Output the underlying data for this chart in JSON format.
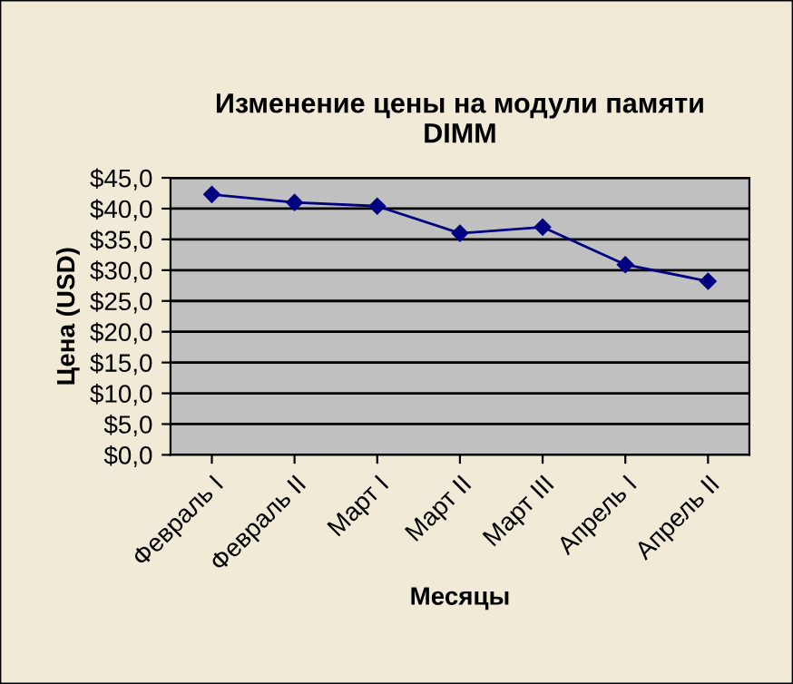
{
  "chart_data": {
    "type": "line",
    "title": "Изменение цены на модули памяти\nDIMM",
    "xlabel": "Месяцы",
    "ylabel": "Цена (USD)",
    "categories": [
      "Февраль I",
      "Февраль II",
      "Март I",
      "Март II",
      "Март III",
      "Апрель I",
      "Апрель II"
    ],
    "series": [
      {
        "color": "#000080",
        "values": [
          42.3,
          41.0,
          40.4,
          36.0,
          37.0,
          30.9,
          28.2
        ]
      }
    ],
    "ylim": [
      0,
      45
    ],
    "yticks": [
      {
        "value": 0,
        "label": "$0,0"
      },
      {
        "value": 5,
        "label": "$5,0"
      },
      {
        "value": 10,
        "label": "$10,0"
      },
      {
        "value": 15,
        "label": "$15,0"
      },
      {
        "value": 20,
        "label": "$20,0"
      },
      {
        "value": 25,
        "label": "$25,0"
      },
      {
        "value": 30,
        "label": "$30,0"
      },
      {
        "value": 35,
        "label": "$35,0"
      },
      {
        "value": 40,
        "label": "$40,0"
      },
      {
        "value": 45,
        "label": "$45,0"
      }
    ],
    "grid": "y",
    "marker": "diamond",
    "line_style": "solid"
  }
}
